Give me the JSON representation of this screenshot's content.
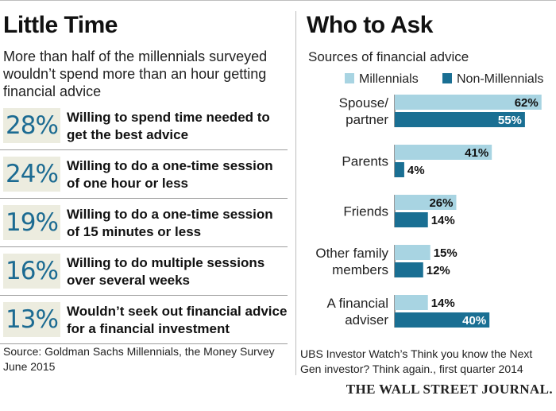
{
  "left": {
    "title": "Little Time",
    "subtitle": "More than half of the millennials surveyed wouldn’t spend more than an hour getting financial advice",
    "stats": [
      {
        "pct": "28%",
        "text": "Willing to spend time needed to get the best advice"
      },
      {
        "pct": "24%",
        "text": "Willing to do a one-time session of one hour or less"
      },
      {
        "pct": "19%",
        "text": "Willing to do a one-time session of 15 minutes or less"
      },
      {
        "pct": "16%",
        "text": "Willing to do multiple sessions over several weeks"
      },
      {
        "pct": "13%",
        "text": "Wouldn’t seek out financial advice for a financial investment"
      }
    ],
    "source": "Source: Goldman Sachs Millennials, the Money Survey June 2015"
  },
  "right": {
    "title": "Who to Ask",
    "subtitle": "Sources of financial advice",
    "source": "UBS Investor Watch’s Think you know the Next Gen investor? Think again., first quarter 2014"
  },
  "brand": "THE WALL STREET JOURNAL.",
  "colors": {
    "millennials": "#a8d4e2",
    "non_millennials": "#1a6f93",
    "pct_text": "#1c6b92",
    "pct_box": "#ececdf"
  },
  "chart_data": [
    {
      "type": "table",
      "title": "Little Time",
      "categories": [
        "Willing to spend time needed to get the best advice",
        "Willing to do a one-time session of one hour or less",
        "Willing to do a one-time session of 15 minutes or less",
        "Willing to do multiple sessions over several weeks",
        "Wouldn’t seek out financial advice for a financial investment"
      ],
      "values": [
        28,
        24,
        19,
        16,
        13
      ]
    },
    {
      "type": "bar",
      "orientation": "horizontal",
      "title": "Who to Ask",
      "subtitle": "Sources of financial advice",
      "categories": [
        [
          "Spouse/",
          "partner"
        ],
        [
          "Parents"
        ],
        [
          "Friends"
        ],
        [
          "Other family",
          "members"
        ],
        [
          "A financial",
          "adviser"
        ]
      ],
      "series": [
        {
          "name": "Millennials",
          "values": [
            62,
            41,
            26,
            15,
            14
          ]
        },
        {
          "name": "Non-Millennials",
          "values": [
            55,
            4,
            14,
            12,
            40
          ]
        }
      ],
      "xlim": [
        0,
        62
      ],
      "legend": "top",
      "grid": false
    }
  ]
}
